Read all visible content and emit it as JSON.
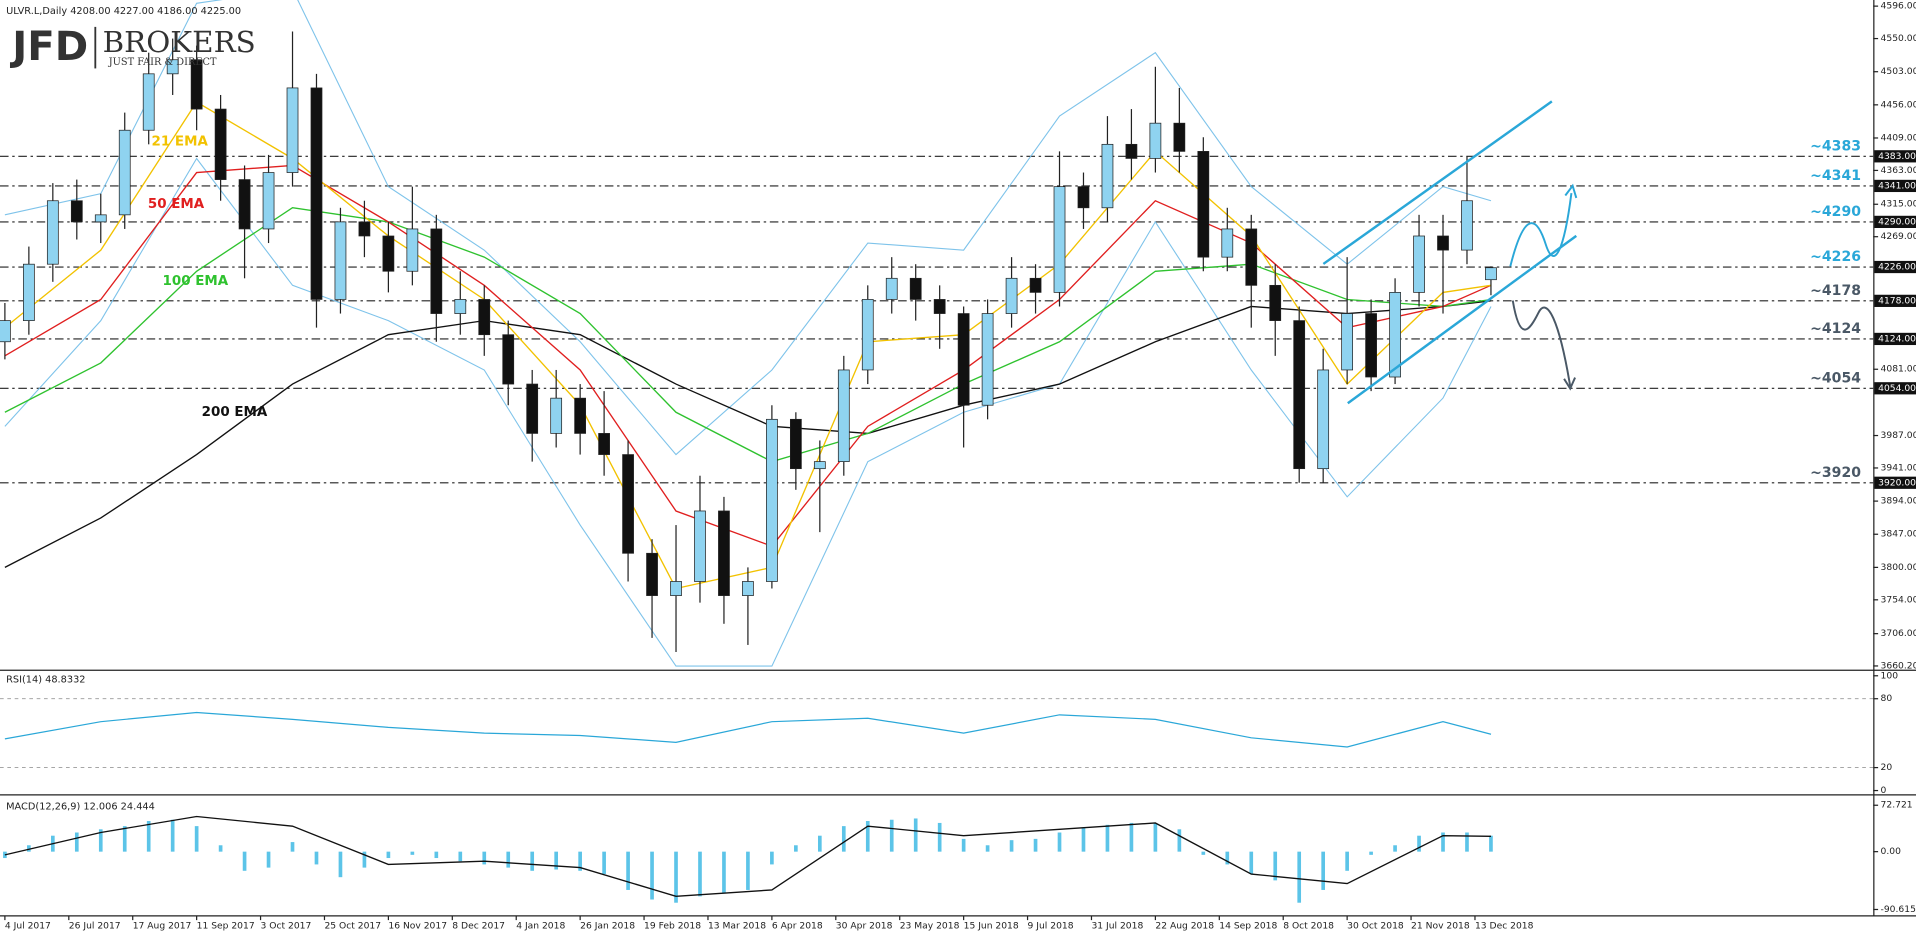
{
  "chart_data": [
    {
      "type": "candlestick",
      "title": "ULVR.L,Daily  4208.00 4227.00 4186.00 4225.00",
      "logo": {
        "main": "JFD",
        "brand": "BROKERS",
        "tagline": "JUST FAIR & DIRECT"
      },
      "up_color": "#8fd3f0",
      "down_color": "#111111",
      "xlim": [
        0,
        468
      ],
      "ylim": [
        3655,
        4604.7
      ],
      "yticks": [
        {
          "value": 4596,
          "label": "4596.00"
        },
        {
          "value": 4550,
          "label": "4550.00"
        },
        {
          "value": 4503,
          "label": "4503.00"
        },
        {
          "value": 4456,
          "label": "4456.00"
        },
        {
          "value": 4409,
          "label": "4409.00"
        },
        {
          "value": 4363,
          "label": "4363.00"
        },
        {
          "value": 4315,
          "label": "4315.00"
        },
        {
          "value": 4269,
          "label": "4269.00"
        },
        {
          "value": 4081,
          "label": "4081.00"
        },
        {
          "value": 3987,
          "label": "3987.00"
        },
        {
          "value": 3941,
          "label": "3941.00"
        },
        {
          "value": 3894,
          "label": "3894.00"
        },
        {
          "value": 3847,
          "label": "3847.00"
        },
        {
          "value": 3800,
          "label": "3800.00"
        },
        {
          "value": 3754,
          "label": "3754.00"
        },
        {
          "value": 3706,
          "label": "3706.00"
        },
        {
          "value": 3660.2,
          "label": "3660.20"
        }
      ],
      "levels": [
        {
          "value": 4383,
          "label": "~4383",
          "tag": "4383.00",
          "color": "#2aa7d8"
        },
        {
          "value": 4341,
          "label": "~4341",
          "tag": "4341.00",
          "color": "#2aa7d8"
        },
        {
          "value": 4290,
          "label": "~4290",
          "tag": "4290.00",
          "color": "#2aa7d8"
        },
        {
          "value": 4226,
          "label": "~4226",
          "tag": "4226.00",
          "color": "#2aa7d8"
        },
        {
          "value": 4178,
          "label": "~4178",
          "tag": "4178.00",
          "color": "#4a5866"
        },
        {
          "value": 4124,
          "label": "~4124",
          "tag": "4124.00",
          "color": "#4a5866"
        },
        {
          "value": 4054,
          "label": "~4054",
          "tag": "4054.00",
          "color": "#4a5866"
        },
        {
          "value": 3920,
          "label": "~3920",
          "tag": "3920.00",
          "color": "#4a5866"
        }
      ],
      "candles": [
        {
          "day": 0,
          "o": 4120,
          "h": 4175,
          "l": 4095,
          "c": 4150
        },
        {
          "day": 6,
          "o": 4150,
          "h": 4255,
          "l": 4130,
          "c": 4230
        },
        {
          "day": 12,
          "o": 4230,
          "h": 4345,
          "l": 4205,
          "c": 4320
        },
        {
          "day": 18,
          "o": 4320,
          "h": 4350,
          "l": 4265,
          "c": 4290
        },
        {
          "day": 24,
          "o": 4290,
          "h": 4330,
          "l": 4260,
          "c": 4300
        },
        {
          "day": 30,
          "o": 4300,
          "h": 4445,
          "l": 4280,
          "c": 4420
        },
        {
          "day": 36,
          "o": 4420,
          "h": 4530,
          "l": 4400,
          "c": 4500
        },
        {
          "day": 42,
          "o": 4500,
          "h": 4550,
          "l": 4470,
          "c": 4520
        },
        {
          "day": 48,
          "o": 4520,
          "h": 4540,
          "l": 4420,
          "c": 4450
        },
        {
          "day": 54,
          "o": 4450,
          "h": 4470,
          "l": 4320,
          "c": 4350
        },
        {
          "day": 60,
          "o": 4350,
          "h": 4370,
          "l": 4210,
          "c": 4280
        },
        {
          "day": 66,
          "o": 4280,
          "h": 4385,
          "l": 4260,
          "c": 4360
        },
        {
          "day": 72,
          "o": 4360,
          "h": 4560,
          "l": 4340,
          "c": 4480
        },
        {
          "day": 78,
          "o": 4480,
          "h": 4500,
          "l": 4140,
          "c": 4180
        },
        {
          "day": 84,
          "o": 4180,
          "h": 4310,
          "l": 4160,
          "c": 4290
        },
        {
          "day": 90,
          "o": 4290,
          "h": 4320,
          "l": 4240,
          "c": 4270
        },
        {
          "day": 96,
          "o": 4270,
          "h": 4290,
          "l": 4190,
          "c": 4220
        },
        {
          "day": 102,
          "o": 4220,
          "h": 4340,
          "l": 4200,
          "c": 4280
        },
        {
          "day": 108,
          "o": 4280,
          "h": 4300,
          "l": 4120,
          "c": 4160
        },
        {
          "day": 114,
          "o": 4160,
          "h": 4220,
          "l": 4130,
          "c": 4180
        },
        {
          "day": 120,
          "o": 4180,
          "h": 4200,
          "l": 4100,
          "c": 4130
        },
        {
          "day": 126,
          "o": 4130,
          "h": 4150,
          "l": 4030,
          "c": 4060
        },
        {
          "day": 132,
          "o": 4060,
          "h": 4080,
          "l": 3950,
          "c": 3990
        },
        {
          "day": 138,
          "o": 3990,
          "h": 4080,
          "l": 3970,
          "c": 4040
        },
        {
          "day": 144,
          "o": 4040,
          "h": 4060,
          "l": 3960,
          "c": 3990
        },
        {
          "day": 150,
          "o": 3990,
          "h": 4050,
          "l": 3930,
          "c": 3960
        },
        {
          "day": 156,
          "o": 3960,
          "h": 3980,
          "l": 3780,
          "c": 3820
        },
        {
          "day": 162,
          "o": 3820,
          "h": 3840,
          "l": 3700,
          "c": 3760
        },
        {
          "day": 168,
          "o": 3760,
          "h": 3860,
          "l": 3680,
          "c": 3780
        },
        {
          "day": 174,
          "o": 3780,
          "h": 3930,
          "l": 3750,
          "c": 3880
        },
        {
          "day": 180,
          "o": 3880,
          "h": 3900,
          "l": 3720,
          "c": 3760
        },
        {
          "day": 186,
          "o": 3760,
          "h": 3800,
          "l": 3690,
          "c": 3780
        },
        {
          "day": 192,
          "o": 3780,
          "h": 4030,
          "l": 3770,
          "c": 4010
        },
        {
          "day": 198,
          "o": 4010,
          "h": 4020,
          "l": 3910,
          "c": 3940
        },
        {
          "day": 204,
          "o": 3940,
          "h": 3980,
          "l": 3850,
          "c": 3950
        },
        {
          "day": 210,
          "o": 3950,
          "h": 4100,
          "l": 3930,
          "c": 4080
        },
        {
          "day": 216,
          "o": 4080,
          "h": 4200,
          "l": 4060,
          "c": 4180
        },
        {
          "day": 222,
          "o": 4180,
          "h": 4240,
          "l": 4160,
          "c": 4210
        },
        {
          "day": 228,
          "o": 4210,
          "h": 4230,
          "l": 4150,
          "c": 4180
        },
        {
          "day": 234,
          "o": 4180,
          "h": 4200,
          "l": 4110,
          "c": 4160
        },
        {
          "day": 240,
          "o": 4160,
          "h": 4170,
          "l": 3970,
          "c": 4030
        },
        {
          "day": 246,
          "o": 4030,
          "h": 4180,
          "l": 4010,
          "c": 4160
        },
        {
          "day": 252,
          "o": 4160,
          "h": 4240,
          "l": 4140,
          "c": 4210
        },
        {
          "day": 258,
          "o": 4210,
          "h": 4230,
          "l": 4160,
          "c": 4190
        },
        {
          "day": 264,
          "o": 4190,
          "h": 4390,
          "l": 4170,
          "c": 4340
        },
        {
          "day": 270,
          "o": 4340,
          "h": 4360,
          "l": 4280,
          "c": 4310
        },
        {
          "day": 276,
          "o": 4310,
          "h": 4440,
          "l": 4290,
          "c": 4400
        },
        {
          "day": 282,
          "o": 4400,
          "h": 4450,
          "l": 4350,
          "c": 4380
        },
        {
          "day": 288,
          "o": 4380,
          "h": 4510,
          "l": 4360,
          "c": 4430
        },
        {
          "day": 294,
          "o": 4430,
          "h": 4480,
          "l": 4360,
          "c": 4390
        },
        {
          "day": 300,
          "o": 4390,
          "h": 4410,
          "l": 4220,
          "c": 4240
        },
        {
          "day": 306,
          "o": 4240,
          "h": 4310,
          "l": 4220,
          "c": 4280
        },
        {
          "day": 312,
          "o": 4280,
          "h": 4300,
          "l": 4140,
          "c": 4200
        },
        {
          "day": 318,
          "o": 4200,
          "h": 4230,
          "l": 4100,
          "c": 4150
        },
        {
          "day": 324,
          "o": 4150,
          "h": 4170,
          "l": 3920,
          "c": 3940
        },
        {
          "day": 330,
          "o": 3940,
          "h": 4110,
          "l": 3920,
          "c": 4080
        },
        {
          "day": 336,
          "o": 4080,
          "h": 4240,
          "l": 4060,
          "c": 4160
        },
        {
          "day": 342,
          "o": 4160,
          "h": 4180,
          "l": 4050,
          "c": 4070
        },
        {
          "day": 348,
          "o": 4070,
          "h": 4210,
          "l": 4060,
          "c": 4190
        },
        {
          "day": 354,
          "o": 4190,
          "h": 4300,
          "l": 4170,
          "c": 4270
        },
        {
          "day": 360,
          "o": 4270,
          "h": 4300,
          "l": 4160,
          "c": 4250
        },
        {
          "day": 366,
          "o": 4250,
          "h": 4383,
          "l": 4230,
          "c": 4320
        },
        {
          "day": 372,
          "o": 4208,
          "h": 4227,
          "l": 4186,
          "c": 4225
        }
      ],
      "x": [
        0,
        24,
        48,
        72,
        96,
        120,
        144,
        168,
        192,
        216,
        240,
        264,
        288,
        312,
        336,
        360,
        372
      ],
      "series": [
        {
          "color": "#7ec3ea",
          "values": [
            4300,
            4330,
            4600,
            4620,
            4340,
            4250,
            4120,
            3960,
            4080,
            4260,
            4250,
            4440,
            4530,
            4340,
            4230,
            4340,
            4320
          ]
        },
        {
          "color": "#7ec3ea",
          "values": [
            4000,
            4150,
            4380,
            4200,
            4150,
            4080,
            3860,
            3660,
            3660,
            3950,
            4020,
            4060,
            4290,
            4080,
            3900,
            4040,
            4170
          ]
        },
        {
          "name": "200 EMA",
          "color": "#111111",
          "values": [
            3800,
            3870,
            3960,
            4060,
            4130,
            4150,
            4130,
            4060,
            4000,
            3990,
            4030,
            4060,
            4120,
            4170,
            4160,
            4170,
            4178
          ]
        },
        {
          "name": "100 EMA",
          "color": "#2fc22f",
          "values": [
            4020,
            4090,
            4220,
            4310,
            4290,
            4240,
            4160,
            4020,
            3950,
            3990,
            4060,
            4120,
            4220,
            4230,
            4180,
            4170,
            4180
          ]
        },
        {
          "name": "50 EMA",
          "color": "#e01f1f",
          "values": [
            4100,
            4180,
            4360,
            4370,
            4290,
            4200,
            4080,
            3880,
            3830,
            4000,
            4080,
            4180,
            4320,
            4260,
            4140,
            4170,
            4200
          ]
        },
        {
          "name": "21 EMA",
          "color": "#f2c200",
          "values": [
            4140,
            4250,
            4460,
            4380,
            4270,
            4180,
            4030,
            3770,
            3800,
            4120,
            4130,
            4230,
            4390,
            4270,
            4060,
            4190,
            4200
          ]
        }
      ]
    },
    {
      "type": "line",
      "title": "RSI(14) 48.8332",
      "ylim": [
        -1.1,
        104.3
      ],
      "yticks": [
        100,
        80,
        20,
        0
      ],
      "x": [
        0,
        24,
        48,
        72,
        96,
        120,
        144,
        168,
        192,
        216,
        240,
        264,
        288,
        312,
        336,
        360,
        372
      ],
      "series": [
        {
          "color": "#2aa7d8",
          "values": [
            45,
            60,
            68,
            62,
            55,
            50,
            48,
            42,
            60,
            63,
            50,
            66,
            62,
            46,
            38,
            60,
            49
          ]
        }
      ]
    },
    {
      "type": "macd",
      "title": "MACD(12,26,9) 12.006 24.444",
      "ylim": [
        -97.7,
        86.1
      ],
      "yticks": [
        72.721,
        {
          "value": 0,
          "label": "0.00"
        },
        -90.615
      ],
      "hist_color": "#5cc4e8",
      "hist_x": [
        0,
        6,
        12,
        18,
        24,
        30,
        36,
        42,
        48,
        54,
        60,
        66,
        72,
        78,
        84,
        90,
        96,
        102,
        108,
        114,
        120,
        126,
        132,
        138,
        144,
        150,
        156,
        162,
        168,
        174,
        180,
        186,
        192,
        198,
        204,
        210,
        216,
        222,
        228,
        234,
        240,
        246,
        252,
        258,
        264,
        270,
        276,
        282,
        288,
        294,
        300,
        306,
        312,
        318,
        324,
        330,
        336,
        342,
        348,
        354,
        360,
        366,
        372
      ],
      "histogram": [
        -10,
        10,
        25,
        30,
        35,
        40,
        48,
        50,
        40,
        10,
        -30,
        -25,
        15,
        -20,
        -40,
        -25,
        -10,
        -5,
        -10,
        -15,
        -20,
        -25,
        -30,
        -28,
        -30,
        -35,
        -60,
        -75,
        -80,
        -70,
        -65,
        -60,
        -20,
        10,
        25,
        40,
        48,
        50,
        52,
        45,
        20,
        10,
        18,
        20,
        30,
        38,
        42,
        45,
        44,
        35,
        -5,
        -20,
        -35,
        -45,
        -80,
        -60,
        -30,
        -5,
        10,
        25,
        30,
        30,
        25
      ],
      "x": [
        0,
        24,
        48,
        72,
        96,
        120,
        144,
        168,
        192,
        216,
        240,
        264,
        288,
        312,
        336,
        360,
        372
      ],
      "series": [
        {
          "color": "#111111",
          "values": [
            -5,
            30,
            55,
            40,
            -20,
            -15,
            -25,
            -70,
            -60,
            40,
            25,
            35,
            45,
            -35,
            -50,
            25,
            24
          ]
        }
      ],
      "xticks": [
        {
          "value": 0,
          "label": "4 Jul 2017"
        },
        {
          "value": 16,
          "label": "26 Jul 2017"
        },
        {
          "value": 32,
          "label": "17 Aug 2017"
        },
        {
          "value": 48,
          "label": "11 Sep 2017"
        },
        {
          "value": 64,
          "label": "3 Oct 2017"
        },
        {
          "value": 80,
          "label": "25 Oct 2017"
        },
        {
          "value": 96,
          "label": "16 Nov 2017"
        },
        {
          "value": 112,
          "label": "8 Dec 2017"
        },
        {
          "value": 128,
          "label": "4 Jan 2018"
        },
        {
          "value": 144,
          "label": "26 Jan 2018"
        },
        {
          "value": 160,
          "label": "19 Feb 2018"
        },
        {
          "value": 176,
          "label": "13 Mar 2018"
        },
        {
          "value": 192,
          "label": "6 Apr 2018"
        },
        {
          "value": 208,
          "label": "30 Apr 2018"
        },
        {
          "value": 224,
          "label": "23 May 2018"
        },
        {
          "value": 240,
          "label": "15 Jun 2018"
        },
        {
          "value": 256,
          "label": "9 Jul 2018"
        },
        {
          "value": 272,
          "label": "31 Jul 2018"
        },
        {
          "value": 288,
          "label": "22 Aug 2018"
        },
        {
          "value": 304,
          "label": "14 Sep 2018"
        },
        {
          "value": 320,
          "label": "8 Oct 2018"
        },
        {
          "value": 336,
          "label": "30 Oct 2018"
        },
        {
          "value": 352,
          "label": "21 Nov 2018"
        },
        {
          "value": 368,
          "label": "13 Dec 2018"
        }
      ]
    }
  ]
}
